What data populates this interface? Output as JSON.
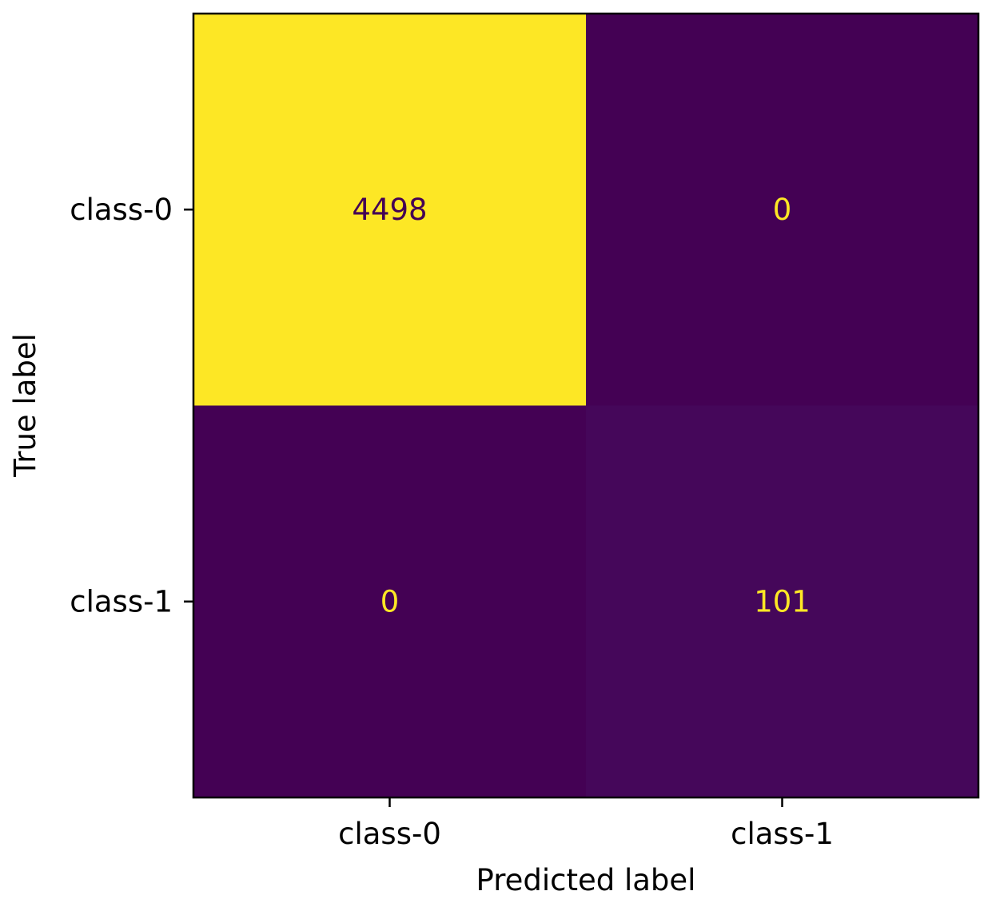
{
  "chart_data": {
    "type": "heatmap",
    "title": "",
    "xlabel": "Predicted label",
    "ylabel": "True label",
    "x_categories": [
      "class-0",
      "class-1"
    ],
    "y_categories": [
      "class-0",
      "class-1"
    ],
    "values": [
      [
        4498,
        0
      ],
      [
        0,
        101
      ]
    ],
    "colormap": "viridis",
    "colors": {
      "low": "#440154",
      "high": "#fde725",
      "text_on_low": "#fde725",
      "text_on_high": "#440154",
      "axis": "#000000"
    },
    "colorbar": false,
    "grid": false
  }
}
